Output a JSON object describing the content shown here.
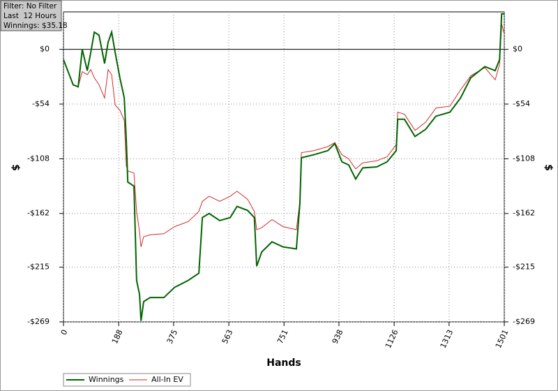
{
  "chart_data": {
    "type": "line",
    "annotations": [
      "Filter: No Filter",
      "Last  12 Hours",
      "Winnings: $35.18"
    ],
    "xlabel": "Hands",
    "ylabel": "$",
    "x": [
      0,
      33,
      50,
      64,
      81,
      93,
      105,
      121,
      140,
      152,
      164,
      176,
      192,
      207,
      214,
      219,
      240,
      249,
      259,
      264,
      273,
      295,
      342,
      378,
      425,
      461,
      473,
      496,
      532,
      568,
      591,
      627,
      650,
      658,
      675,
      710,
      748,
      793,
      805,
      810,
      853,
      900,
      924,
      948,
      971,
      995,
      1019,
      1067,
      1102,
      1133,
      1138,
      1161,
      1197,
      1233,
      1268,
      1316,
      1352,
      1387,
      1435,
      1470,
      1485,
      1492,
      1501
    ],
    "series": [
      {
        "name": "Winnings",
        "color": "#006400",
        "values": [
          -10,
          -35,
          -37,
          0,
          -21,
          -3,
          17,
          14,
          -14,
          7,
          17,
          -3,
          -28,
          -48,
          -90,
          -131,
          -135,
          -228,
          -242,
          -268,
          -249,
          -245,
          -245,
          -235,
          -228,
          -221,
          -166,
          -162,
          -169,
          -166,
          -155,
          -159,
          -166,
          -214,
          -200,
          -190,
          -195,
          -197,
          -152,
          -107,
          -104,
          -100,
          -93,
          -111,
          -114,
          -128,
          -117,
          -116,
          -111,
          -100,
          -69,
          -69,
          -86,
          -79,
          -66,
          -62,
          -48,
          -28,
          -17,
          -21,
          -10,
          35,
          35
        ]
      },
      {
        "name": "All-In EV",
        "color": "#d42a2a",
        "values": [
          -10,
          -35,
          -37,
          -22,
          -25,
          -20,
          -28,
          -35,
          -48,
          -20,
          -25,
          -55,
          -60,
          -70,
          -115,
          -120,
          -122,
          -160,
          -180,
          -195,
          -185,
          -183,
          -182,
          -175,
          -170,
          -160,
          -150,
          -145,
          -150,
          -145,
          -140,
          -148,
          -160,
          -178,
          -176,
          -168,
          -175,
          -178,
          -150,
          -102,
          -100,
          -96,
          -92,
          -104,
          -108,
          -118,
          -112,
          -110,
          -106,
          -94,
          -62,
          -64,
          -80,
          -72,
          -58,
          -56,
          -40,
          -26,
          -18,
          -30,
          -15,
          25,
          15
        ]
      }
    ],
    "xlim": [
      0,
      1501
    ],
    "xticks": [
      0,
      188,
      375,
      563,
      751,
      938,
      1126,
      1313,
      1501
    ],
    "ylim": [
      -269,
      37
    ],
    "yticks": [
      {
        "value": 0,
        "label": "$0"
      },
      {
        "value": -54,
        "label": "-$54"
      },
      {
        "value": -108,
        "label": "-$108"
      },
      {
        "value": -162,
        "label": "-$162"
      },
      {
        "value": -215,
        "label": "-$215"
      },
      {
        "value": -269,
        "label": "-$269"
      }
    ],
    "grid": true
  }
}
